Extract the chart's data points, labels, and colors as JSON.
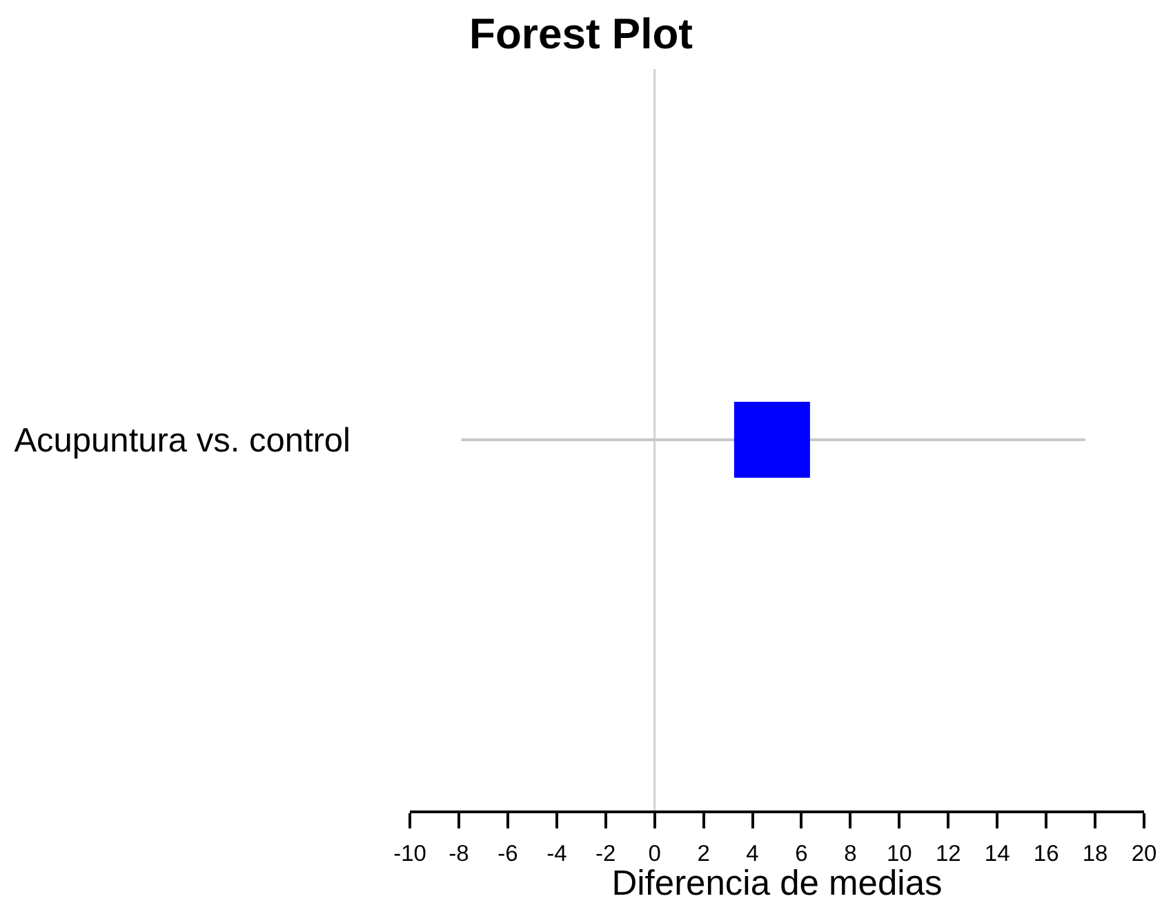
{
  "chart_data": {
    "type": "scatter",
    "title": "Forest Plot",
    "xlabel": "Diferencia de medias",
    "orientation": "horizontal",
    "categories": [
      "Acupuntura vs. control"
    ],
    "series": [
      {
        "color": "#0000ff",
        "values": [
          4.8
        ],
        "errors": [
          [
            -7.9,
            17.6
          ]
        ]
      }
    ],
    "xlim": [
      -10,
      20
    ],
    "xticks": [
      -10,
      -8,
      -6,
      -4,
      -2,
      0,
      2,
      4,
      6,
      8,
      10,
      12,
      14,
      16,
      18,
      20
    ],
    "ref_lines": [
      {
        "axis": "x",
        "value": 0,
        "color": "#d3d3d3"
      }
    ],
    "grid": false,
    "marker": "square"
  }
}
